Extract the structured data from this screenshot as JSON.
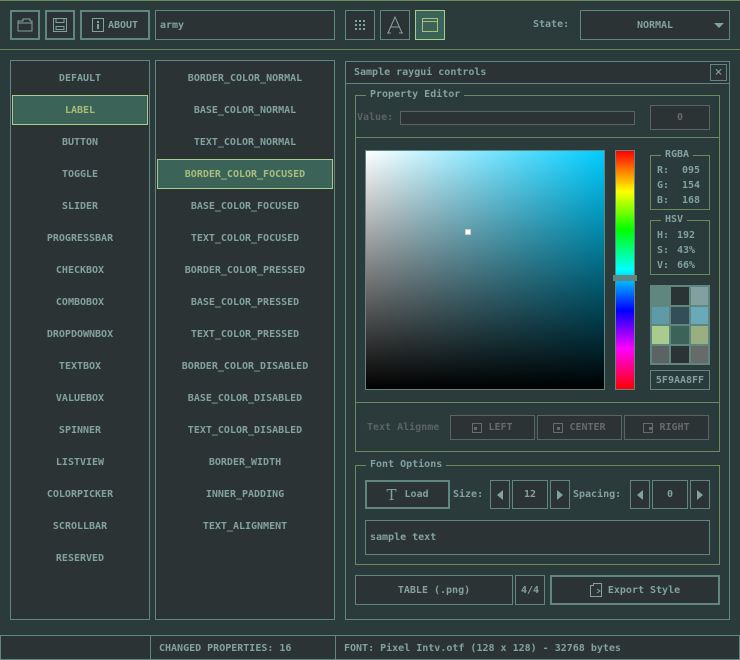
{
  "toolbar": {
    "about_label": "ABOUT",
    "style_name": "army",
    "state_label": "State:",
    "state_value": "NORMAL"
  },
  "controls": [
    "DEFAULT",
    "LABEL",
    "BUTTON",
    "TOGGLE",
    "SLIDER",
    "PROGRESSBAR",
    "CHECKBOX",
    "COMBOBOX",
    "DROPDOWNBOX",
    "TEXTBOX",
    "VALUEBOX",
    "SPINNER",
    "LISTVIEW",
    "COLORPICKER",
    "SCROLLBAR",
    "RESERVED"
  ],
  "selected_control": "LABEL",
  "properties": [
    "BORDER_COLOR_NORMAL",
    "BASE_COLOR_NORMAL",
    "TEXT_COLOR_NORMAL",
    "BORDER_COLOR_FOCUSED",
    "BASE_COLOR_FOCUSED",
    "TEXT_COLOR_FOCUSED",
    "BORDER_COLOR_PRESSED",
    "BASE_COLOR_PRESSED",
    "TEXT_COLOR_PRESSED",
    "BORDER_COLOR_DISABLED",
    "BASE_COLOR_DISABLED",
    "TEXT_COLOR_DISABLED",
    "BORDER_WIDTH",
    "INNER_PADDING",
    "TEXT_ALIGNMENT"
  ],
  "selected_property": "BORDER_COLOR_FOCUSED",
  "window": {
    "title": "Sample raygui controls",
    "close": "×"
  },
  "property_editor": {
    "title": "Property Editor",
    "value_label": "Value:",
    "value_input": "",
    "value_button": "0"
  },
  "color": {
    "hue": 192,
    "selector_s": 0.43,
    "selector_v": 0.66,
    "rgba": {
      "title": "RGBA",
      "r_label": "R:",
      "r": "095",
      "g_label": "G:",
      "g": "154",
      "b_label": "B:",
      "b": "168"
    },
    "hsv": {
      "title": "HSV",
      "h_label": "H:",
      "h": "192",
      "s_label": "S:",
      "s": "43%",
      "v_label": "V:",
      "v": "66%"
    },
    "hex": "5F9AA8FF",
    "swatches": [
      "#5f8780",
      "#2c3334",
      "#82a09f",
      "#5f9aa8",
      "#334e57",
      "#6aa9b8",
      "#a9cb8d",
      "#3b6357",
      "#97af81",
      "#5b6462",
      "#2c3334",
      "#666b69"
    ]
  },
  "alignment": {
    "label": "Text Alignme",
    "left": "LEFT",
    "center": "CENTER",
    "right": "RIGHT"
  },
  "font_options": {
    "title": "Font Options",
    "load": "Load",
    "size_label": "Size:",
    "size": "12",
    "spacing_label": "Spacing:",
    "spacing": "0",
    "sample": "sample text"
  },
  "bottom": {
    "table": "TABLE (.png)",
    "page": "4/4",
    "export": "Export Style"
  },
  "status": {
    "left": "",
    "changed": "CHANGED PROPERTIES: 16",
    "font": "FONT: Pixel Intv.otf (128 x 128) - 32768 bytes"
  },
  "colors": {
    "background": "#2b3a3a",
    "base": "#2c3334",
    "border": "#5f8780",
    "text": "#82a29f",
    "focused_border": "#a7cc8c",
    "focused_base": "#3b6357"
  }
}
